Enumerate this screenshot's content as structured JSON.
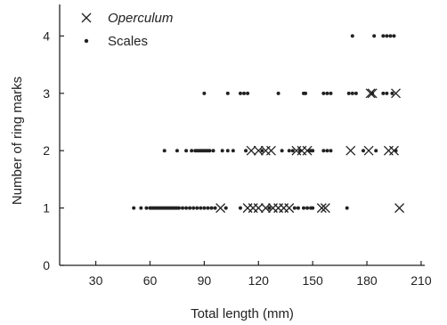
{
  "chart_data": {
    "type": "scatter",
    "title": "",
    "xlabel": "Total length (mm)",
    "ylabel": "Number of ring marks",
    "xlim": [
      10,
      212
    ],
    "ylim": [
      0,
      4.55
    ],
    "x_ticks": [
      30,
      60,
      90,
      120,
      150,
      180,
      210
    ],
    "y_ticks": [
      0,
      1,
      2,
      3,
      4
    ],
    "grid": false,
    "legend_position": "top-left",
    "series": [
      {
        "name": "Operculum",
        "marker": "cross",
        "points": [
          [
            99,
            1
          ],
          [
            114,
            1
          ],
          [
            117,
            1
          ],
          [
            120,
            1
          ],
          [
            124,
            1
          ],
          [
            128,
            1
          ],
          [
            131,
            1
          ],
          [
            134,
            1
          ],
          [
            137,
            1
          ],
          [
            155,
            1
          ],
          [
            157,
            1
          ],
          [
            198,
            1
          ],
          [
            116,
            2
          ],
          [
            120,
            2
          ],
          [
            124,
            2
          ],
          [
            127,
            2
          ],
          [
            141,
            2
          ],
          [
            144,
            2
          ],
          [
            147,
            2
          ],
          [
            171,
            2
          ],
          [
            181,
            2
          ],
          [
            192,
            2
          ],
          [
            195,
            2
          ],
          [
            182,
            3
          ],
          [
            183,
            3
          ],
          [
            196,
            3
          ]
        ]
      },
      {
        "name": "Scales",
        "marker": "dot",
        "points": [
          [
            51,
            1
          ],
          [
            55,
            1
          ],
          [
            58,
            1
          ],
          [
            60,
            1
          ],
          [
            61,
            1
          ],
          [
            62,
            1
          ],
          [
            63,
            1
          ],
          [
            64,
            1
          ],
          [
            65,
            1
          ],
          [
            66,
            1
          ],
          [
            67,
            1
          ],
          [
            68,
            1
          ],
          [
            69,
            1
          ],
          [
            70,
            1
          ],
          [
            71,
            1
          ],
          [
            72,
            1
          ],
          [
            73,
            1
          ],
          [
            74,
            1
          ],
          [
            75,
            1
          ],
          [
            76,
            1
          ],
          [
            78,
            1
          ],
          [
            80,
            1
          ],
          [
            82,
            1
          ],
          [
            84,
            1
          ],
          [
            86,
            1
          ],
          [
            88,
            1
          ],
          [
            90,
            1
          ],
          [
            92,
            1
          ],
          [
            94,
            1
          ],
          [
            96,
            1
          ],
          [
            102,
            1
          ],
          [
            110,
            1
          ],
          [
            126,
            1
          ],
          [
            140,
            1
          ],
          [
            142,
            1
          ],
          [
            145,
            1
          ],
          [
            147,
            1
          ],
          [
            149,
            1
          ],
          [
            150,
            1
          ],
          [
            169,
            1
          ],
          [
            68,
            2
          ],
          [
            75,
            2
          ],
          [
            80,
            2
          ],
          [
            83,
            2
          ],
          [
            85,
            2
          ],
          [
            86,
            2
          ],
          [
            87,
            2
          ],
          [
            88,
            2
          ],
          [
            89,
            2
          ],
          [
            90,
            2
          ],
          [
            91,
            2
          ],
          [
            92,
            2
          ],
          [
            93,
            2
          ],
          [
            95,
            2
          ],
          [
            100,
            2
          ],
          [
            103,
            2
          ],
          [
            106,
            2
          ],
          [
            113,
            2
          ],
          [
            122,
            2
          ],
          [
            133,
            2
          ],
          [
            137,
            2
          ],
          [
            139,
            2
          ],
          [
            143,
            2
          ],
          [
            148,
            2
          ],
          [
            149,
            2
          ],
          [
            150,
            2
          ],
          [
            156,
            2
          ],
          [
            158,
            2
          ],
          [
            160,
            2
          ],
          [
            178,
            2
          ],
          [
            185,
            2
          ],
          [
            196,
            2
          ],
          [
            90,
            3
          ],
          [
            103,
            3
          ],
          [
            110,
            3
          ],
          [
            112,
            3
          ],
          [
            114,
            3
          ],
          [
            131,
            3
          ],
          [
            145,
            3
          ],
          [
            146,
            3
          ],
          [
            156,
            3
          ],
          [
            158,
            3
          ],
          [
            160,
            3
          ],
          [
            170,
            3
          ],
          [
            172,
            3
          ],
          [
            174,
            3
          ],
          [
            183,
            3
          ],
          [
            189,
            3
          ],
          [
            191,
            3
          ],
          [
            194,
            3
          ],
          [
            172,
            4
          ],
          [
            184,
            4
          ],
          [
            189,
            4
          ],
          [
            191,
            4
          ],
          [
            193,
            4
          ],
          [
            195,
            4
          ]
        ]
      }
    ]
  },
  "legend": {
    "items": [
      {
        "label": "Operculum",
        "marker": "cross"
      },
      {
        "label": "Scales",
        "marker": "dot"
      }
    ]
  }
}
